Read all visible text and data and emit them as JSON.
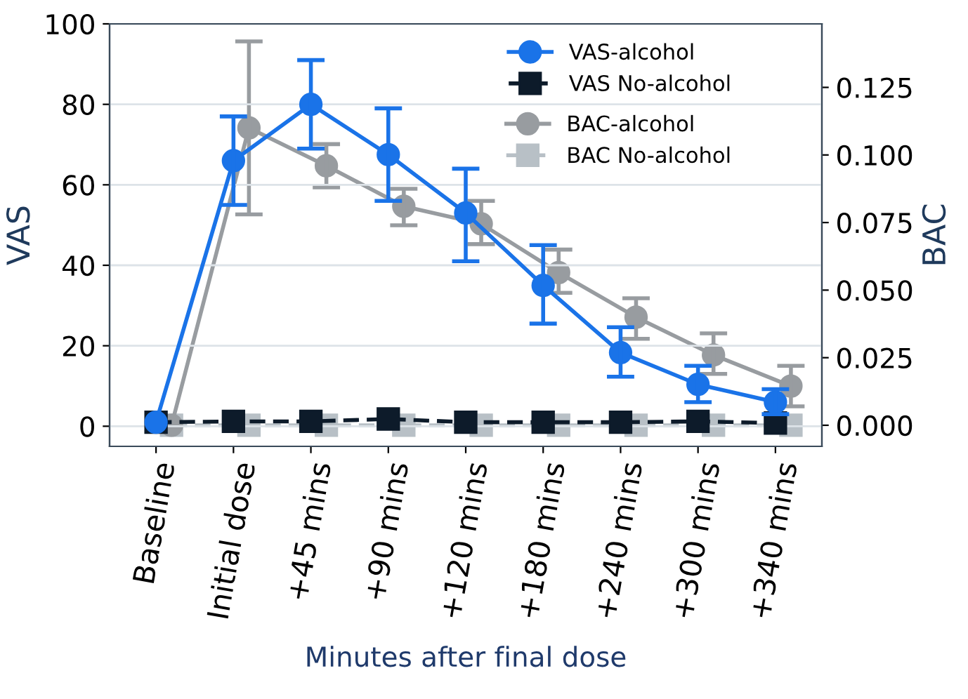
{
  "chart_data": {
    "type": "line",
    "xlabel": "Minutes after final dose",
    "ylabel": "VAS",
    "y2label": "BAC",
    "categories": [
      "Baseline",
      "Initial dose",
      "+45 mins",
      "+90 mins",
      "+120 mins",
      "+180 mins",
      "+240 mins",
      "+300 mins",
      "+340 mins"
    ],
    "series": [
      {
        "name": "VAS-alcohol",
        "color": "#1a73e8",
        "marker": "circle",
        "line_style": "solid",
        "values": [
          1,
          66,
          80,
          67.5,
          53,
          35,
          18.3,
          10.4,
          6
        ],
        "errors": [
          null,
          [
            55,
            77
          ],
          [
            69,
            91
          ],
          [
            56,
            79
          ],
          [
            41,
            64
          ],
          [
            25.5,
            45
          ],
          [
            12.3,
            24.6
          ],
          [
            6,
            15
          ],
          [
            3,
            9.2
          ]
        ]
      },
      {
        "name": "VAS No-alcohol",
        "color": "#0d1b2a",
        "marker": "square",
        "line_style": "dashed",
        "values": [
          1,
          1.2,
          1.2,
          1.8,
          1,
          1,
          1,
          1.2,
          0.8
        ]
      },
      {
        "name": "BAC-alcohol",
        "color": "#989ca0",
        "marker": "circle",
        "line_style": "solid",
        "axis": "y2",
        "values": [
          0,
          0.11,
          0.096,
          0.081,
          0.0745,
          0.0565,
          0.04,
          0.026,
          0.0145
        ],
        "errors": [
          null,
          [
            0.078,
            0.142
          ],
          [
            0.088,
            0.104
          ],
          [
            0.074,
            0.0875
          ],
          [
            0.067,
            0.083
          ],
          [
            0.049,
            0.065
          ],
          [
            0.032,
            0.047
          ],
          [
            0.019,
            0.034
          ],
          [
            0.007,
            0.022
          ]
        ]
      },
      {
        "name": "BAC No-alcohol",
        "color": "#b8c0c6",
        "marker": "square",
        "line_style": "dashed",
        "axis": "y2",
        "values": [
          0,
          0,
          0,
          0,
          0,
          0,
          0,
          0,
          0
        ]
      }
    ],
    "ylim": [
      -5,
      100
    ],
    "yticks": [
      0,
      20,
      40,
      60,
      80,
      100
    ],
    "y2lim": [
      -0.0078,
      0.1485
    ],
    "y2ticks": [
      {
        "value": 0,
        "label": "0.000"
      },
      {
        "value": 0.025,
        "label": "0.025"
      },
      {
        "value": 0.05,
        "label": "0.050"
      },
      {
        "value": 0.075,
        "label": "0.075"
      },
      {
        "value": 0.1,
        "label": "0.100"
      },
      {
        "value": 0.125,
        "label": "0.125"
      }
    ],
    "grid": "y",
    "legend": "top right"
  }
}
